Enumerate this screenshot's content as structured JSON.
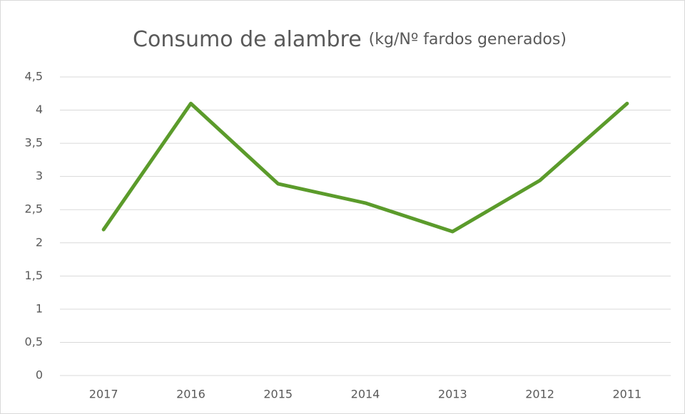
{
  "chart_data": {
    "type": "line",
    "title": "Consumo de alambre",
    "subtitle": "(kg/Nº fardos generados)",
    "categories": [
      "2017",
      "2016",
      "2015",
      "2014",
      "2013",
      "2012",
      "2011"
    ],
    "values": [
      2.2,
      4.1,
      2.89,
      2.6,
      2.17,
      2.94,
      4.1
    ],
    "color": "#5b9b2b",
    "ylim": [
      0,
      4.5
    ],
    "yticks": [
      0,
      {
        "value": 0.5,
        "label": "0,5"
      },
      1,
      {
        "value": 1.5,
        "label": "1,5"
      },
      2,
      {
        "value": 2.5,
        "label": "2,5"
      },
      3,
      {
        "value": 3.5,
        "label": "3,5"
      },
      4,
      {
        "value": 4.5,
        "label": "4,5"
      }
    ],
    "grid": true
  }
}
